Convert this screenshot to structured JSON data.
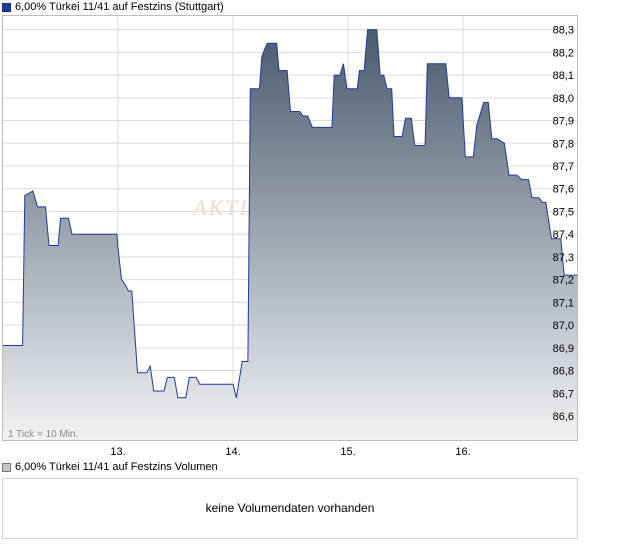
{
  "chart_data": {
    "type": "area",
    "title": "6,00% Türkei 11/41 auf Festzins (Stuttgart)",
    "series_name": "6,00% Türkei 11/41 auf Festzins",
    "x_ticks": [
      "13.",
      "14.",
      "15.",
      "16."
    ],
    "y_ticks": [
      "86,6",
      "86,7",
      "86,8",
      "86,9",
      "87,0",
      "87,1",
      "87,2",
      "87,3",
      "87,4",
      "87,5",
      "87,6",
      "87,7",
      "87,8",
      "87,9",
      "88,0",
      "88,1",
      "88,2",
      "88,3"
    ],
    "ylim": [
      86.49,
      88.36
    ],
    "xlim": [
      0,
      5
    ],
    "grid": true,
    "note": "1 Tick = 10 Min.",
    "watermark": "AKTI",
    "colors": {
      "area_top": "#4a5b6e",
      "area_bottom": "#f1f2f4",
      "line": "#1f3aa0",
      "grid": "#dddddd"
    },
    "points": [
      [
        0.0,
        86.91
      ],
      [
        0.17,
        86.91
      ],
      [
        0.19,
        87.57
      ],
      [
        0.26,
        87.59
      ],
      [
        0.3,
        87.52
      ],
      [
        0.37,
        87.52
      ],
      [
        0.4,
        87.35
      ],
      [
        0.48,
        87.35
      ],
      [
        0.5,
        87.47
      ],
      [
        0.57,
        87.47
      ],
      [
        0.6,
        87.4
      ],
      [
        0.99,
        87.4
      ],
      [
        1.0,
        87.34
      ],
      [
        1.03,
        87.2
      ],
      [
        1.06,
        87.18
      ],
      [
        1.09,
        87.15
      ],
      [
        1.12,
        87.15
      ],
      [
        1.17,
        86.79
      ],
      [
        1.25,
        86.79
      ],
      [
        1.28,
        86.82
      ],
      [
        1.31,
        86.71
      ],
      [
        1.4,
        86.71
      ],
      [
        1.43,
        86.77
      ],
      [
        1.49,
        86.77
      ],
      [
        1.52,
        86.68
      ],
      [
        1.59,
        86.68
      ],
      [
        1.62,
        86.77
      ],
      [
        1.68,
        86.77
      ],
      [
        1.71,
        86.74
      ],
      [
        2.0,
        86.74
      ],
      [
        2.03,
        86.68
      ],
      [
        2.08,
        86.84
      ],
      [
        2.13,
        86.84
      ],
      [
        2.15,
        88.04
      ],
      [
        2.23,
        88.04
      ],
      [
        2.25,
        88.18
      ],
      [
        2.28,
        88.22
      ],
      [
        2.3,
        88.24
      ],
      [
        2.38,
        88.24
      ],
      [
        2.4,
        88.12
      ],
      [
        2.47,
        88.12
      ],
      [
        2.5,
        87.94
      ],
      [
        2.58,
        87.94
      ],
      [
        2.61,
        87.92
      ],
      [
        2.65,
        87.92
      ],
      [
        2.69,
        87.87
      ],
      [
        2.86,
        87.87
      ],
      [
        2.88,
        88.1
      ],
      [
        2.93,
        88.1
      ],
      [
        2.96,
        88.15
      ],
      [
        2.99,
        88.04
      ],
      [
        3.08,
        88.04
      ],
      [
        3.1,
        88.12
      ],
      [
        3.14,
        88.12
      ],
      [
        3.17,
        88.3
      ],
      [
        3.25,
        88.3
      ],
      [
        3.28,
        88.1
      ],
      [
        3.31,
        88.1
      ],
      [
        3.34,
        88.04
      ],
      [
        3.38,
        88.04
      ],
      [
        3.4,
        87.83
      ],
      [
        3.47,
        87.83
      ],
      [
        3.5,
        87.91
      ],
      [
        3.55,
        87.91
      ],
      [
        3.58,
        87.79
      ],
      [
        3.67,
        87.79
      ],
      [
        3.69,
        88.15
      ],
      [
        3.85,
        88.15
      ],
      [
        3.88,
        88.0
      ],
      [
        3.99,
        88.0
      ],
      [
        4.02,
        87.74
      ],
      [
        4.09,
        87.74
      ],
      [
        4.12,
        87.88
      ],
      [
        4.18,
        87.98
      ],
      [
        4.22,
        87.98
      ],
      [
        4.25,
        87.82
      ],
      [
        4.3,
        87.82
      ],
      [
        4.36,
        87.8
      ],
      [
        4.4,
        87.66
      ],
      [
        4.47,
        87.66
      ],
      [
        4.51,
        87.64
      ],
      [
        4.57,
        87.64
      ],
      [
        4.6,
        87.56
      ],
      [
        4.66,
        87.56
      ],
      [
        4.69,
        87.54
      ],
      [
        4.72,
        87.54
      ],
      [
        4.77,
        87.38
      ],
      [
        4.85,
        87.38
      ],
      [
        4.88,
        87.22
      ],
      [
        5.0,
        87.22
      ]
    ]
  },
  "volume": {
    "title": "6,00% Türkei 11/41 auf Festzins Volumen",
    "message": "keine Volumendaten vorhanden"
  }
}
